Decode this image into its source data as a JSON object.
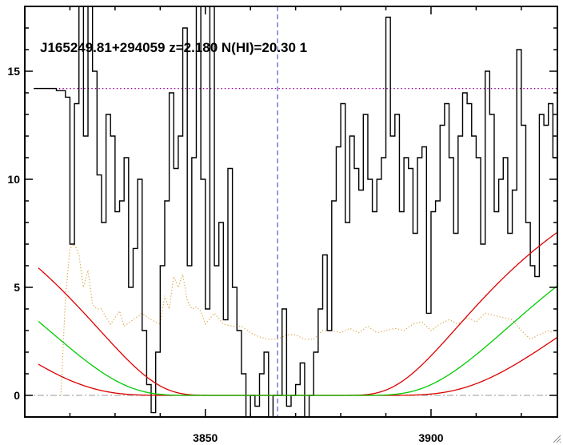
{
  "chart_data": {
    "type": "line",
    "title": "J165249.81+294059 z=2.180 N(HI)=20.30 1",
    "xlabel": "",
    "ylabel": "",
    "xlim": [
      3810,
      3928
    ],
    "ylim": [
      -1,
      18
    ],
    "x_ticks": [
      3850,
      3900
    ],
    "x_tick_labels": [
      "3850",
      "3900"
    ],
    "y_ticks": [
      0,
      5,
      10,
      15
    ],
    "y_tick_labels": [
      "0",
      "5",
      "10",
      "15"
    ],
    "grid": false,
    "legend": "none",
    "reference_lines": {
      "zero_level": 0,
      "continuum_level": 14.2,
      "line_center": 3866
    },
    "voigt_model": {
      "continuum_start": 13.6,
      "continuum_end": 13.9,
      "center": 3866,
      "best_fit_width": 3.6,
      "lower_width": 4.6,
      "upper_width": 2.8,
      "fit_range": [
        3813,
        3928
      ]
    },
    "series": [
      {
        "role": "flux",
        "step": true,
        "x": [
          3812,
          3817,
          3819,
          3820,
          3821,
          3822,
          3823,
          3824,
          3825,
          3826,
          3827,
          3828,
          3829,
          3830,
          3831,
          3832,
          3833,
          3834,
          3835,
          3836,
          3837,
          3838,
          3839,
          3840,
          3841,
          3842,
          3843,
          3844,
          3845,
          3846,
          3847,
          3848,
          3849,
          3850,
          3851,
          3852,
          3853,
          3854,
          3855,
          3856,
          3857,
          3858,
          3859,
          3860,
          3861,
          3862,
          3863,
          3864,
          3865,
          3866,
          3867,
          3868,
          3869,
          3870,
          3871,
          3872,
          3873,
          3874,
          3875,
          3876,
          3877,
          3878,
          3879,
          3880,
          3881,
          3882,
          3883,
          3884,
          3885,
          3886,
          3887,
          3888,
          3889,
          3890,
          3891,
          3892,
          3893,
          3894,
          3895,
          3896,
          3897,
          3898,
          3899,
          3900,
          3901,
          3902,
          3903,
          3904,
          3905,
          3906,
          3907,
          3908,
          3909,
          3910,
          3911,
          3912,
          3913,
          3914,
          3915,
          3916,
          3917,
          3918,
          3919,
          3920,
          3921,
          3922,
          3923,
          3924,
          3925,
          3926,
          3927
        ],
        "values": [
          14.2,
          14.1,
          13.8,
          7.0,
          13.5,
          18.0,
          12.0,
          18.0,
          15.0,
          10.2,
          8.0,
          13.0,
          12.0,
          8.5,
          9.0,
          11.0,
          5.0,
          6.8,
          10.0,
          3.0,
          0.5,
          -0.8,
          2.0,
          6.0,
          9.0,
          14.0,
          10.5,
          12.0,
          17.0,
          6.0,
          11.0,
          18.0,
          10.0,
          4.0,
          18.0,
          6.0,
          8.0,
          3.5,
          10.5,
          5.0,
          3.0,
          1.0,
          -1.0,
          0.0,
          -0.5,
          1.0,
          2.0,
          -1.5,
          0.0,
          0.0,
          4.0,
          -0.5,
          0.0,
          0.5,
          1.5,
          -1.0,
          0.0,
          2.0,
          4.0,
          6.5,
          3.0,
          9.0,
          11.5,
          13.5,
          8.0,
          12.0,
          10.5,
          9.5,
          13.0,
          10.0,
          8.5,
          10.0,
          11.0,
          17.5,
          12.0,
          13.0,
          8.5,
          11.0,
          10.5,
          7.5,
          11.0,
          11.5,
          3.8,
          8.5,
          9.0,
          12.5,
          13.5,
          11.0,
          7.5,
          12.0,
          14.0,
          13.5,
          12.0,
          11.0,
          7.0,
          15.0,
          13.0,
          8.5,
          10.0,
          11.0,
          7.5,
          9.5,
          16.0,
          12.5,
          8.0,
          6.0,
          5.5,
          13.0,
          12.5,
          13.5,
          11.0
        ]
      },
      {
        "role": "error",
        "x": [
          3818,
          3819,
          3820,
          3821,
          3822,
          3823,
          3824,
          3825,
          3826,
          3827,
          3828,
          3829,
          3830,
          3831,
          3832,
          3834,
          3836,
          3838,
          3840,
          3841,
          3842,
          3843,
          3844,
          3845,
          3846,
          3847,
          3848,
          3849,
          3850,
          3852,
          3854,
          3856,
          3858,
          3860,
          3862,
          3864,
          3866,
          3868,
          3870,
          3872,
          3874,
          3876,
          3878,
          3880,
          3882,
          3884,
          3886,
          3888,
          3890,
          3892,
          3894,
          3896,
          3898,
          3900,
          3902,
          3904,
          3906,
          3908,
          3910,
          3912,
          3914,
          3916,
          3918,
          3920,
          3922,
          3924,
          3926,
          3927
        ],
        "values": [
          0.0,
          4.5,
          6.8,
          7.0,
          6.5,
          5.0,
          5.8,
          4.2,
          4.0,
          4.0,
          3.6,
          3.3,
          3.6,
          3.9,
          3.2,
          3.5,
          3.8,
          3.5,
          3.3,
          4.6,
          4.0,
          5.5,
          5.0,
          5.6,
          4.4,
          4.0,
          4.1,
          3.9,
          3.3,
          3.8,
          3.3,
          3.2,
          3.2,
          2.9,
          2.7,
          2.6,
          2.6,
          2.8,
          2.8,
          2.6,
          2.6,
          3.0,
          3.0,
          2.9,
          3.1,
          2.9,
          3.2,
          2.9,
          3.0,
          3.1,
          3.0,
          3.3,
          3.4,
          3.0,
          3.3,
          3.5,
          3.3,
          3.6,
          3.4,
          3.8,
          3.7,
          3.6,
          3.5,
          3.0,
          2.6,
          2.8,
          3.0,
          2.9
        ]
      }
    ]
  },
  "colors": {
    "flux": "#000000",
    "error": "#d9a441",
    "fit": "#00cc00",
    "bounds": "#dd0000",
    "continuum": "#990099",
    "center_line": "#2a3ac8",
    "zero_line": "#999999",
    "axes": "#000000",
    "background": "#ffffff"
  },
  "ui": {
    "resize_grip_icon": "resize-grip-icon"
  }
}
